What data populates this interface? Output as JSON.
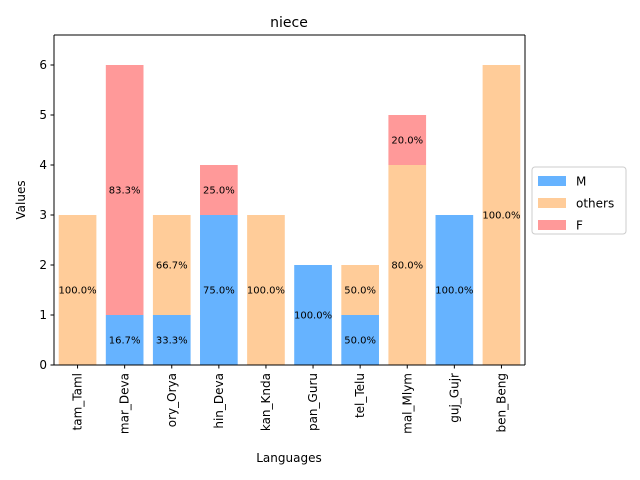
{
  "chart_data": {
    "type": "bar",
    "stacked": true,
    "title": "niece",
    "xlabel": "Languages",
    "ylabel": "Values",
    "ylim": [
      0,
      6.6
    ],
    "yticks": [
      "0",
      "1",
      "2",
      "3",
      "4",
      "5",
      "6"
    ],
    "categories": [
      "tam_Taml",
      "mar_Deva",
      "ory_Orya",
      "hin_Deva",
      "kan_Knda",
      "pan_Guru",
      "tel_Telu",
      "mal_Mlym",
      "guj_Gujr",
      "ben_Beng"
    ],
    "series": [
      {
        "name": "M",
        "color": "#66b3ff",
        "values": [
          0,
          1,
          1,
          3,
          0,
          2,
          1,
          0,
          3,
          0
        ],
        "labels": [
          "",
          "16.7%",
          "33.3%",
          "75.0%",
          "",
          "100.0%",
          "50.0%",
          "",
          "100.0%",
          ""
        ]
      },
      {
        "name": "others",
        "color": "#ffcc99",
        "values": [
          3,
          0,
          2,
          0,
          3,
          0,
          1,
          4,
          0,
          6
        ],
        "labels": [
          "100.0%",
          "",
          "66.7%",
          "",
          "100.0%",
          "",
          "50.0%",
          "80.0%",
          "",
          "100.0%"
        ]
      },
      {
        "name": "F",
        "color": "#ff9999",
        "values": [
          0,
          5,
          0,
          1,
          0,
          0,
          0,
          1,
          0,
          0
        ],
        "labels": [
          "",
          "83.3%",
          "",
          "25.0%",
          "",
          "",
          "",
          "20.0%",
          "",
          ""
        ]
      }
    ],
    "grid": false,
    "legend_position": "center-right"
  }
}
